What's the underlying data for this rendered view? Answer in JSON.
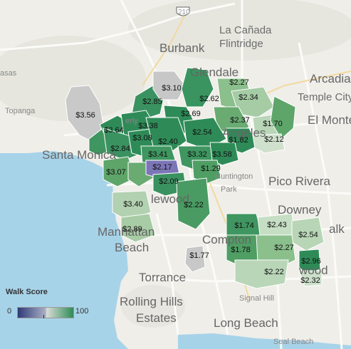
{
  "map": {
    "places": [
      {
        "key": "burbank",
        "label": "Burbank"
      },
      {
        "key": "la_canada",
        "label": "La Cañada"
      },
      {
        "key": "flintridge",
        "label": "Flintridge"
      },
      {
        "key": "glendale",
        "label": "Glendale"
      },
      {
        "key": "arcadia",
        "label": "Arcadia"
      },
      {
        "key": "temple_city",
        "label": "Temple City"
      },
      {
        "key": "el_monte",
        "label": "El Monte"
      },
      {
        "key": "topanga",
        "label": "Topanga"
      },
      {
        "key": "santa_monica",
        "label": "Santa Monica"
      },
      {
        "key": "pico_rivera",
        "label": "Pico Rivera"
      },
      {
        "key": "huntington",
        "label": "Huntington"
      },
      {
        "key": "park",
        "label": "Park"
      },
      {
        "key": "inglewood",
        "label": "lewood"
      },
      {
        "key": "downey",
        "label": "Downey"
      },
      {
        "key": "norwalk",
        "label": "alk"
      },
      {
        "key": "manhattan",
        "label": "Manhattan"
      },
      {
        "key": "beach",
        "label": "Beach"
      },
      {
        "key": "compton",
        "label": "Compton"
      },
      {
        "key": "lakewood",
        "label": "wood"
      },
      {
        "key": "torrance",
        "label": "Torrance"
      },
      {
        "key": "signal_hill",
        "label": "Signal Hill"
      },
      {
        "key": "rolling_hills",
        "label": "Rolling Hills"
      },
      {
        "key": "estates",
        "label": "Estates"
      },
      {
        "key": "long_beach",
        "label": "Long Beach"
      },
      {
        "key": "seal_beach",
        "label": "Seal Beach"
      },
      {
        "key": "masas",
        "label": "asas"
      },
      {
        "key": "angeles",
        "label": "Angeles"
      },
      {
        "key": "hills",
        "label": "erly"
      }
    ],
    "highway_label": "210",
    "prices": [
      {
        "id": "p1",
        "label": "$3.10"
      },
      {
        "id": "p2",
        "label": "$2.27"
      },
      {
        "id": "p3",
        "label": "$2.34"
      },
      {
        "id": "p4",
        "label": "$2.62"
      },
      {
        "id": "p5",
        "label": "$2.85"
      },
      {
        "id": "p6",
        "label": "$3.56"
      },
      {
        "id": "p7",
        "label": "$2.69"
      },
      {
        "id": "p8",
        "label": "$2.37"
      },
      {
        "id": "p9",
        "label": "$1.70"
      },
      {
        "id": "p10",
        "label": "$3.64"
      },
      {
        "id": "p11",
        "label": "$3.38"
      },
      {
        "id": "p12",
        "label": "$2.54"
      },
      {
        "id": "p13",
        "label": "$3.08"
      },
      {
        "id": "p14",
        "label": "$2.40"
      },
      {
        "id": "p15",
        "label": "$1.82"
      },
      {
        "id": "p16",
        "label": "$2.12"
      },
      {
        "id": "p17",
        "label": "$2.84"
      },
      {
        "id": "p18",
        "label": "$3.41"
      },
      {
        "id": "p19",
        "label": "$3.32"
      },
      {
        "id": "p20",
        "label": "$3.58"
      },
      {
        "id": "p21",
        "label": "$3.07"
      },
      {
        "id": "p22",
        "label": "$2.17"
      },
      {
        "id": "p23",
        "label": "$1.29"
      },
      {
        "id": "p24",
        "label": "$2.09"
      },
      {
        "id": "p25",
        "label": "$3.40"
      },
      {
        "id": "p26",
        "label": "$2.22"
      },
      {
        "id": "p27",
        "label": "$2.89"
      },
      {
        "id": "p28",
        "label": "$1.74"
      },
      {
        "id": "p29",
        "label": "$2.43"
      },
      {
        "id": "p30",
        "label": "$2.54"
      },
      {
        "id": "p31",
        "label": "$1.77"
      },
      {
        "id": "p32",
        "label": "$1.78"
      },
      {
        "id": "p33",
        "label": "$2.27"
      },
      {
        "id": "p34",
        "label": "$2.96"
      },
      {
        "id": "p35",
        "label": "$2.32"
      },
      {
        "id": "p36",
        "label": "$2.22"
      }
    ]
  },
  "legend": {
    "title": "Walk Score",
    "min_label": "0",
    "max_label": "100"
  },
  "colors": {
    "water": "#a7d3e9",
    "land": "#efeee9",
    "region_dark": "#2e8b57",
    "region_light": "#b7d4b3",
    "region_gray": "#c8c8c8",
    "region_purple": "#7c76b8"
  }
}
